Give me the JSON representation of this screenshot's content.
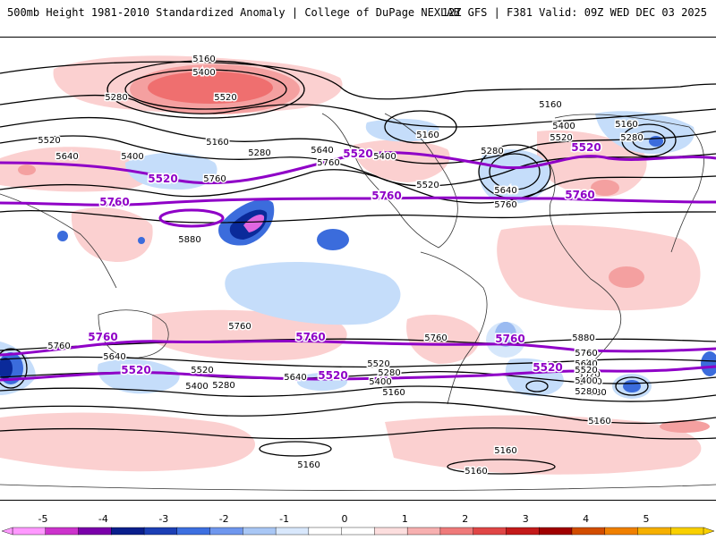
{
  "header": {
    "title_left": "500mb Height 1981-2010 Standardized Anomaly | College of DuPage NEXLAB",
    "title_right": "12Z GFS | F381 Valid: 09Z WED DEC 03 2025"
  },
  "colors": {
    "anom_neg5": "#e066e0",
    "anom_neg4": "#9900cc",
    "anom_neg3": "#0a2a9a",
    "anom_neg2": "#3b6cdc",
    "anom_neg1": "#c5ddfa",
    "anom_pos1": "#fbd0d0",
    "anom_pos2": "#f07f7f",
    "anom_pos3": "#c21d1d",
    "anom_pos4": "#a80000",
    "anom_pos5": "#f2a000",
    "contour_black": "#000000",
    "contour_purple": "#8f00c7"
  },
  "colorbar": {
    "labels": [
      "-5",
      "-4",
      "-3",
      "-2",
      "-1",
      "0",
      "1",
      "2",
      "3",
      "4",
      "5"
    ],
    "colors": [
      "#ff99ff",
      "#cc33cc",
      "#7a00aa",
      "#0a1f8c",
      "#1c3fb5",
      "#3d6fe0",
      "#6f97ee",
      "#a9c7f5",
      "#d9e8fc",
      "#ffffff",
      "#ffffff",
      "#fcdede",
      "#f7b0b0",
      "#ef7a7a",
      "#e04646",
      "#c41a1a",
      "#a00000",
      "#d24d00",
      "#f08000",
      "#f6b000",
      "#f9d000"
    ]
  },
  "map": {
    "contour_labels": [
      {
        "text": "5160"
      },
      {
        "text": "5400"
      },
      {
        "text": "5520"
      },
      {
        "text": "5280"
      },
      {
        "text": "5520"
      },
      {
        "text": "5160"
      },
      {
        "text": "5400"
      },
      {
        "text": "5640"
      },
      {
        "text": "5760"
      },
      {
        "text": "5280"
      },
      {
        "text": "5760"
      },
      {
        "text": "5640"
      },
      {
        "text": "5880"
      },
      {
        "text": "5160"
      },
      {
        "text": "5400"
      },
      {
        "text": "5640"
      },
      {
        "text": "5520"
      },
      {
        "text": "5280"
      },
      {
        "text": "5160"
      },
      {
        "text": "5400"
      },
      {
        "text": "5520"
      },
      {
        "text": "5280"
      },
      {
        "text": "5640"
      },
      {
        "text": "5760"
      },
      {
        "text": "5160"
      },
      {
        "text": "5880"
      },
      {
        "text": "5760"
      },
      {
        "text": "5760"
      },
      {
        "text": "5640"
      },
      {
        "text": "5520"
      },
      {
        "text": "5400"
      },
      {
        "text": "5280"
      },
      {
        "text": "5880"
      },
      {
        "text": "5760"
      },
      {
        "text": "5640"
      },
      {
        "text": "5520"
      },
      {
        "text": "5400"
      },
      {
        "text": "5280"
      },
      {
        "text": "5160"
      },
      {
        "text": "5760"
      },
      {
        "text": "5640"
      },
      {
        "text": "5400"
      },
      {
        "text": "5520"
      },
      {
        "text": "5280"
      },
      {
        "text": "5160"
      },
      {
        "text": "5160"
      },
      {
        "text": "5160"
      },
      {
        "text": "5160"
      },
      {
        "text": "5880"
      },
      {
        "text": "5760"
      },
      {
        "text": "5640"
      },
      {
        "text": "5520"
      },
      {
        "text": "5400"
      },
      {
        "text": "5280"
      }
    ],
    "purple_labels": [
      {
        "text": "5520"
      },
      {
        "text": "5760"
      },
      {
        "text": "5520"
      },
      {
        "text": "5760"
      },
      {
        "text": "5520"
      },
      {
        "text": "5760"
      },
      {
        "text": "5760"
      },
      {
        "text": "5760"
      },
      {
        "text": "5760"
      },
      {
        "text": "5520"
      },
      {
        "text": "5520"
      },
      {
        "text": "5520"
      }
    ]
  }
}
